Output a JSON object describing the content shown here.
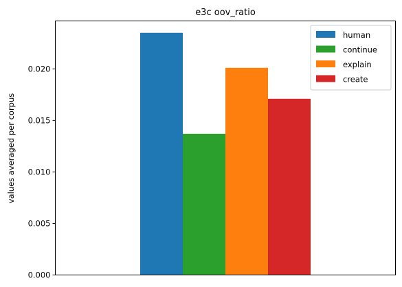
{
  "chart_data": {
    "type": "bar",
    "title": "e3c oov_ratio",
    "xlabel": "",
    "ylabel": "values averaged per corpus",
    "categories": [
      ""
    ],
    "series": [
      {
        "name": "human",
        "values": [
          0.0235
        ],
        "color": "#1f77b4"
      },
      {
        "name": "continue",
        "values": [
          0.0137
        ],
        "color": "#2ca02c"
      },
      {
        "name": "explain",
        "values": [
          0.0201
        ],
        "color": "#ff7f0e"
      },
      {
        "name": "create",
        "values": [
          0.0171
        ],
        "color": "#d62728"
      }
    ],
    "ylim": [
      0,
      0.02465
    ],
    "yticks": [
      0.0,
      0.005,
      0.01,
      0.015,
      0.02
    ],
    "ytick_labels": [
      "0.000",
      "0.005",
      "0.010",
      "0.015",
      "0.020"
    ],
    "grid": false,
    "legend_position": "top-right"
  }
}
